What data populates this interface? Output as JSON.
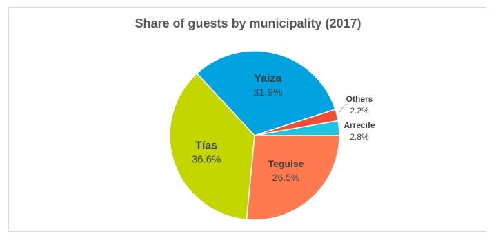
{
  "chart_data": {
    "type": "pie",
    "title": "Share of guests by municipality (2017)",
    "slices": [
      {
        "label": "Yaiza",
        "value": 31.9,
        "display": "31.9%",
        "color": "#00a3e0"
      },
      {
        "label": "Others",
        "value": 2.2,
        "display": "2.2%",
        "color": "#f04e37"
      },
      {
        "label": "Arrecife",
        "value": 2.8,
        "display": "2.8%",
        "color": "#20c4e0"
      },
      {
        "label": "Teguise",
        "value": 26.5,
        "display": "26.5%",
        "color": "#ff7a4f"
      },
      {
        "label": "Tías",
        "value": 36.6,
        "display": "36.6%",
        "color": "#c4d600"
      }
    ],
    "legend": "none"
  }
}
